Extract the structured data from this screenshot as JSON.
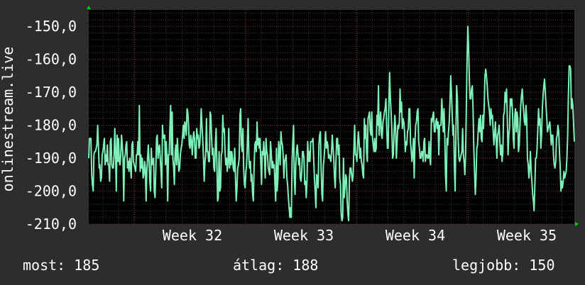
{
  "chart_data": {
    "type": "line",
    "ylabel": "onlinestream.live",
    "ylim": [
      -210,
      -145
    ],
    "y_ticks": [
      {
        "value": -150,
        "label": "-150,0"
      },
      {
        "value": -160,
        "label": "-160,0"
      },
      {
        "value": -170,
        "label": "-170,0"
      },
      {
        "value": -180,
        "label": "-180,0"
      },
      {
        "value": -190,
        "label": "-190,0"
      },
      {
        "value": -200,
        "label": "-200,0"
      },
      {
        "value": -210,
        "label": "-210,0"
      }
    ],
    "x_ticks": [
      "Week 32",
      "Week 33",
      "Week 34",
      "Week 35"
    ],
    "grid": true,
    "series": [
      {
        "color": "#7ff0b8",
        "values": [
          -190,
          -184,
          -184,
          -184,
          -195,
          -198,
          -200,
          -189,
          -188,
          -188,
          -187,
          -186,
          -180,
          -186,
          -193,
          -192,
          -197,
          -196,
          -189,
          -188,
          -186,
          -184,
          -192,
          -189,
          -191,
          -186,
          -192,
          -192,
          -197,
          -185,
          -184,
          -192,
          -193,
          -193,
          -189,
          -181,
          -189,
          -200,
          -183,
          -191,
          -184,
          -191,
          -192,
          -189,
          -183,
          -186,
          -190,
          -203,
          -190,
          -189,
          -186,
          -185,
          -193,
          -191,
          -194,
          -190,
          -192,
          -196,
          -186,
          -185,
          -191,
          -192,
          -193,
          -194,
          -189,
          -189,
          -185,
          -189,
          -174,
          -194,
          -189,
          -193,
          -190,
          -196,
          -195,
          -191,
          -193,
          -203,
          -194,
          -190,
          -186,
          -191,
          -197,
          -200,
          -187,
          -192,
          -191,
          -190,
          -200,
          -202,
          -194,
          -184,
          -183,
          -190,
          -187,
          -186,
          -190,
          -194,
          -199,
          -180,
          -184,
          -183,
          -183,
          -192,
          -185,
          -190,
          -203,
          -189,
          -189,
          -181,
          -174,
          -189,
          -176,
          -190,
          -193,
          -198,
          -188,
          -186,
          -192,
          -184,
          -189,
          -194,
          -193,
          -189,
          -187,
          -186,
          -183,
          -180,
          -184,
          -179,
          -180,
          -183,
          -175,
          -176,
          -180,
          -186,
          -187,
          -183,
          -185,
          -189,
          -184,
          -182,
          -184,
          -190,
          -190,
          -181,
          -184,
          -183,
          -187,
          -186,
          -182,
          -175,
          -180,
          -184,
          -190,
          -197,
          -191,
          -189,
          -178,
          -188,
          -188,
          -191,
          -191,
          -176,
          -177,
          -184,
          -189,
          -187,
          -193,
          -194,
          -186,
          -181,
          -191,
          -203,
          -202,
          -188,
          -200,
          -199,
          -189,
          -188,
          -177,
          -182,
          -181,
          -188,
          -192,
          -190,
          -194,
          -191,
          -181,
          -193,
          -188,
          -192,
          -188,
          -190,
          -193,
          -194,
          -187,
          -196,
          -203,
          -199,
          -193,
          -192,
          -190,
          -177,
          -175,
          -186,
          -188,
          -181,
          -193,
          -198,
          -199,
          -194,
          -192,
          -185,
          -178,
          -190,
          -193,
          -191,
          -197,
          -195,
          -201,
          -203,
          -193,
          -186,
          -185,
          -188,
          -179,
          -186,
          -184,
          -187,
          -184,
          -191,
          -198,
          -188,
          -189,
          -185,
          -190,
          -196,
          -184,
          -188,
          -189,
          -193,
          -194,
          -195,
          -185,
          -188,
          -193,
          -191,
          -193,
          -192,
          -198,
          -203,
          -187,
          -200,
          -196,
          -185,
          -188,
          -192,
          -182,
          -185,
          -186,
          -189,
          -196,
          -191,
          -190,
          -189,
          -196,
          -198,
          -202,
          -205,
          -208,
          -205,
          -208,
          -191,
          -185,
          -180,
          -196,
          -201,
          -192,
          -188,
          -186,
          -189,
          -192,
          -190,
          -196,
          -197,
          -194,
          -188,
          -188,
          -190,
          -198,
          -197,
          -202,
          -197,
          -185,
          -191,
          -188,
          -191,
          -185,
          -185,
          -185,
          -184,
          -190,
          -196,
          -200,
          -205,
          -195,
          -196,
          -199,
          -186,
          -183,
          -182,
          -193,
          -201,
          -203,
          -192,
          -190,
          -186,
          -182,
          -187,
          -185,
          -186,
          -190,
          -189,
          -190,
          -191,
          -188,
          -183,
          -187,
          -190,
          -196,
          -199,
          -190,
          -184,
          -184,
          -189,
          -186,
          -196,
          -198,
          -207,
          -209,
          -208,
          -190,
          -202,
          -199,
          -195,
          -196,
          -203,
          -207,
          -209,
          -196,
          -193,
          -193,
          -195,
          -197,
          -195,
          -187,
          -180,
          -189,
          -189,
          -191,
          -186,
          -182,
          -185,
          -190,
          -187,
          -191,
          -192,
          -195,
          -196,
          -178,
          -184,
          -180,
          -188,
          -191,
          -178,
          -177,
          -176,
          -182,
          -183,
          -176,
          -184,
          -186,
          -188,
          -184,
          -188,
          -187,
          -177,
          -180,
          -168,
          -183,
          -179,
          -176,
          -183,
          -184,
          -179,
          -178,
          -176,
          -175,
          -172,
          -180,
          -187,
          -187,
          -173,
          -164,
          -172,
          -176,
          -182,
          -190,
          -189,
          -182,
          -177,
          -181,
          -190,
          -185,
          -180,
          -181,
          -179,
          -169,
          -176,
          -173,
          -181,
          -178,
          -179,
          -182,
          -188,
          -185,
          -186,
          -182,
          -181,
          -175,
          -175,
          -185,
          -188,
          -191,
          -189,
          -184,
          -196,
          -185,
          -180,
          -179,
          -176,
          -175,
          -185,
          -187,
          -190,
          -190,
          -188,
          -188,
          -191,
          -185,
          -184,
          -191,
          -189,
          -189,
          -190,
          -190,
          -185,
          -190,
          -192,
          -178,
          -179,
          -177,
          -176,
          -182,
          -182,
          -179,
          -178,
          -181,
          -179,
          -189,
          -180,
          -180,
          -180,
          -172,
          -177,
          -182,
          -175,
          -183,
          -195,
          -200,
          -184,
          -186,
          -182,
          -179,
          -173,
          -165,
          -170,
          -177,
          -183,
          -180,
          -193,
          -200,
          -182,
          -168,
          -172,
          -184,
          -190,
          -191,
          -190,
          -189,
          -188,
          -181,
          -189,
          -191,
          -195,
          -189,
          -174,
          -160,
          -150,
          -156,
          -166,
          -172,
          -172,
          -169,
          -168,
          -175,
          -187,
          -194,
          -201,
          -196,
          -187,
          -186,
          -181,
          -178,
          -182,
          -177,
          -184,
          -185,
          -177,
          -181,
          -174,
          -165,
          -163,
          -165,
          -168,
          -172,
          -174,
          -176,
          -180,
          -175,
          -178,
          -177,
          -182,
          -186,
          -183,
          -179,
          -184,
          -190,
          -183,
          -182,
          -180,
          -185,
          -189,
          -186,
          -191,
          -188,
          -177,
          -176,
          -170,
          -173,
          -169,
          -178,
          -189,
          -183,
          -181,
          -172,
          -174,
          -172,
          -176,
          -184,
          -187,
          -177,
          -175,
          -182,
          -176,
          -178,
          -188,
          -186,
          -180,
          -174,
          -171,
          -169,
          -173,
          -176,
          -179,
          -180,
          -174,
          -178,
          -190,
          -192,
          -196,
          -193,
          -188,
          -194,
          -197,
          -201,
          -203,
          -206,
          -198,
          -190,
          -190,
          -187,
          -181,
          -175,
          -180,
          -178,
          -187,
          -183,
          -175,
          -171,
          -168,
          -166,
          -170,
          -174,
          -178,
          -182,
          -181,
          -180,
          -179,
          -182,
          -186,
          -183,
          -183,
          -189,
          -192,
          -193,
          -191,
          -184,
          -183,
          -180,
          -182,
          -188,
          -193,
          -200,
          -197,
          -199,
          -197,
          -194,
          -196,
          -195,
          -194,
          -190,
          -183,
          -171,
          -162,
          -162,
          -163,
          -175,
          -172,
          -174,
          -180,
          -185
        ]
      }
    ]
  },
  "stats": {
    "current": "most: 185",
    "average": "átlag: 188",
    "max": "legjobb: 150"
  },
  "colors": {
    "background": "#2d2d2d",
    "plot_background": "#000000",
    "grid": "#3a3a3a",
    "grid_major": "#7a2a2a",
    "line": "#7ff0b8",
    "arrow": "#00cc00",
    "text": "#ffffff"
  }
}
